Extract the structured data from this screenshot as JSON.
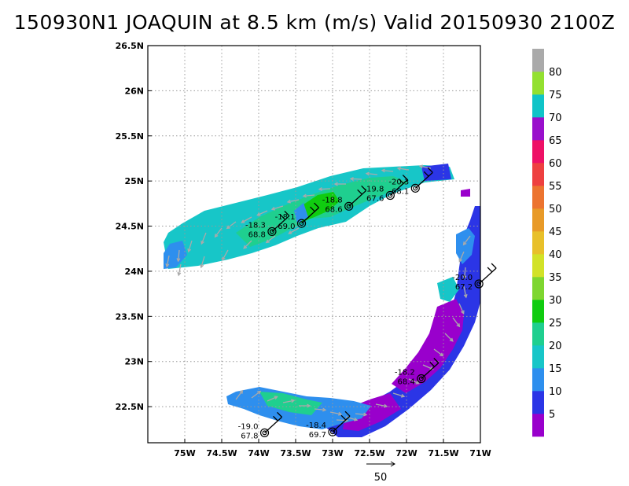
{
  "title": "150930N1 JOAQUIN at 8.5 km (m/s) Valid 20150930 2100Z",
  "chart_data": {
    "type": "heatmap",
    "title": "150930N1 JOAQUIN at 8.5 km (m/s) Valid 20150930 2100Z",
    "xlim": [
      -75.5,
      -71
    ],
    "ylim": [
      22.1,
      26.5
    ],
    "grid": true,
    "x_ticks": [
      {
        "value": -75.0,
        "label": "75W"
      },
      {
        "value": -74.5,
        "label": "74.5W"
      },
      {
        "value": -74.0,
        "label": "74W"
      },
      {
        "value": -73.5,
        "label": "73.5W"
      },
      {
        "value": -73.0,
        "label": "73W"
      },
      {
        "value": -72.5,
        "label": "72.5W"
      },
      {
        "value": -72.0,
        "label": "72W"
      },
      {
        "value": -71.5,
        "label": "71.5W"
      },
      {
        "value": -71.0,
        "label": "71W"
      }
    ],
    "y_ticks": [
      {
        "value": 22.5,
        "label": "22.5N"
      },
      {
        "value": 23.0,
        "label": "23N"
      },
      {
        "value": 23.5,
        "label": "23.5N"
      },
      {
        "value": 24.0,
        "label": "24N"
      },
      {
        "value": 24.5,
        "label": "24.5N"
      },
      {
        "value": 25.0,
        "label": "25N"
      },
      {
        "value": 25.5,
        "label": "25.5N"
      },
      {
        "value": 26.0,
        "label": "26N"
      },
      {
        "value": 26.5,
        "label": "26.5N"
      }
    ],
    "colorbar": {
      "labels": [
        "5",
        "10",
        "15",
        "20",
        "25",
        "30",
        "35",
        "40",
        "45",
        "50",
        "55",
        "60",
        "65",
        "70",
        "75",
        "80"
      ],
      "colors": [
        "#9900cc",
        "#2b35e6",
        "#2e8fee",
        "#17c6c8",
        "#1fcf8f",
        "#10cc10",
        "#7ed630",
        "#d2e228",
        "#e8c02a",
        "#e89a28",
        "#ec7430",
        "#ee4040",
        "#ee1166",
        "#9910cc",
        "#10c4c8",
        "#93e030",
        "#aaaaaa"
      ]
    },
    "vector_reference": {
      "label": "50",
      "value": 50
    },
    "stations": [
      {
        "lon": -73.82,
        "lat": 24.44,
        "temp": "-18.3",
        "rh": "68.8"
      },
      {
        "lon": -73.42,
        "lat": 24.53,
        "temp": "-18.1",
        "rh": "69.0"
      },
      {
        "lon": -72.78,
        "lat": 24.72,
        "temp": "-18.8",
        "rh": "68.6"
      },
      {
        "lon": -72.22,
        "lat": 24.84,
        "temp": "-19.8",
        "rh": "67.6"
      },
      {
        "lon": -71.88,
        "lat": 24.92,
        "temp": "-20.3",
        "rh": "68.1"
      },
      {
        "lon": -71.02,
        "lat": 23.86,
        "temp": "-20.0",
        "rh": "67.2"
      },
      {
        "lon": -71.8,
        "lat": 22.81,
        "temp": "-18.2",
        "rh": "68.4"
      },
      {
        "lon": -73.0,
        "lat": 22.22,
        "temp": "-18.4",
        "rh": "69.7"
      },
      {
        "lon": -73.92,
        "lat": 22.21,
        "temp": "-19.0",
        "rh": "67.8"
      }
    ]
  }
}
